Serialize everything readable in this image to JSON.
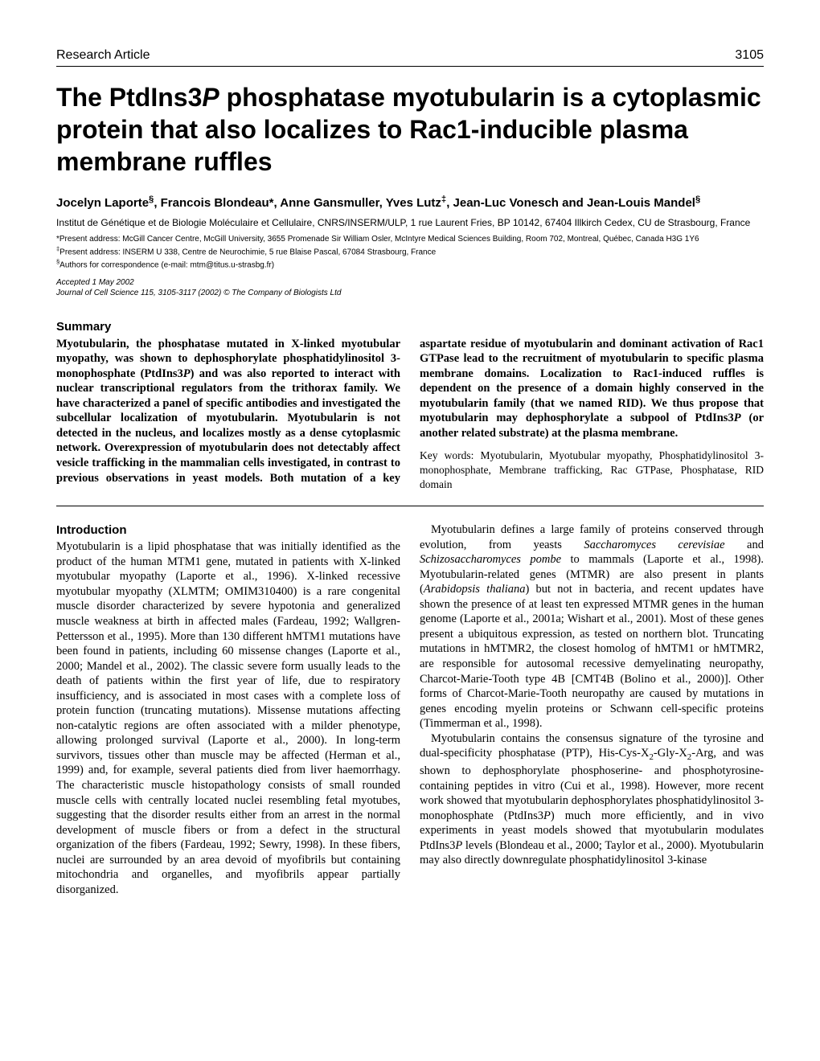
{
  "header": {
    "section": "Research Article",
    "page_number": "3105"
  },
  "title_html": "The PtdIns3<span class='ital'>P</span> phosphatase myotubularin is a cytoplasmic protein that also localizes to Rac1-inducible plasma membrane ruffles",
  "authors_html": "Jocelyn Laporte<sup>§</sup>, Francois Blondeau*, Anne Gansmuller, Yves Lutz<sup>‡</sup>, Jean-Luc Vonesch and Jean-Louis Mandel<sup>§</sup>",
  "affiliation": "Institut de Génétique et de Biologie Moléculaire et Cellulaire, CNRS/INSERM/ULP, 1 rue Laurent Fries, BP 10142, 67404 Illkirch Cedex, CU de Strasbourg, France",
  "addresses_html": "*Present address: McGill Cancer Centre, McGill University, 3655 Promenade Sir William Osler, McIntyre Medical Sciences Building, Room 702, Montreal, Québec, Canada H3G 1Y6<br><sup>‡</sup>Present address: INSERM U 338, Centre de Neurochimie, 5 rue Blaise Pascal, 67084 Strasbourg, France<br><sup>§</sup>Authors for correspondence (e-mail: mtm@titus.u-strasbg.fr)",
  "accepted": "Accepted 1 May 2002",
  "journal_ref": "Journal of Cell Science 115, 3105-3117 (2002) © The Company of Biologists Ltd",
  "summary": {
    "heading": "Summary",
    "body_html": "Myotubularin, the phosphatase mutated in X-linked myotubular myopathy, was shown to dephosphorylate phosphatidylinositol 3-monophosphate (PtdIns3<span class='ital'>P</span>) and was also reported to interact with nuclear transcriptional regulators from the trithorax family. We have characterized a panel of specific antibodies and investigated the subcellular localization of myotubularin. Myotubularin is not detected in the nucleus, and localizes mostly as a dense cytoplasmic network. Overexpression of myotubularin does not detectably affect vesicle trafficking in the mammalian cells investigated, in contrast to previous observations in yeast models. Both mutation of a key aspartate residue of myotubularin and dominant activation of Rac1 GTPase lead to the recruitment of myotubularin to specific plasma membrane domains. Localization to Rac1-induced ruffles is dependent on the presence of a domain highly conserved in the myotubularin family (that we named RID). We thus propose that myotubularin may dephosphorylate a subpool of PtdIns3<span class='ital'>P</span> (or another related substrate) at the plasma membrane.",
    "keywords_html": "Key words: Myotubularin, Myotubular myopathy, Phosphatidylinositol 3-monophosphate, Membrane trafficking, Rac GTPase, Phosphatase, RID domain"
  },
  "introduction": {
    "heading": "Introduction",
    "p1_html": "Myotubularin is a lipid phosphatase that was initially identified as the product of the human MTM1 gene, mutated in patients with X-linked myotubular myopathy (Laporte et al., 1996). X-linked recessive myotubular myopathy (XLMTM; OMIM310400) is a rare congenital muscle disorder characterized by severe hypotonia and generalized muscle weakness at birth in affected males (Fardeau, 1992; Wallgren-Pettersson et al., 1995). More than 130 different hMTM1 mutations have been found in patients, including 60 missense changes (Laporte et al., 2000; Mandel et al., 2002). The classic severe form usually leads to the death of patients within the first year of life, due to respiratory insufficiency, and is associated in most cases with a complete loss of protein function (truncating mutations). Missense mutations affecting non-catalytic regions are often associated with a milder phenotype, allowing prolonged survival (Laporte et al., 2000). In long-term survivors, tissues other than muscle may be affected (Herman et al., 1999) and, for example, several patients died from liver haemorrhagy. The characteristic muscle histopathology consists of small rounded muscle cells with centrally located nuclei resembling fetal myotubes, suggesting that the disorder results either from an arrest in the normal development of muscle fibers or from a defect in the structural organization of the fibers (Fardeau, 1992; Sewry, 1998). In these fibers, nuclei are surrounded by an area devoid of myofibrils but containing mitochondria and organelles, and myofibrils appear partially disorganized.",
    "p2_html": "Myotubularin defines a large family of proteins conserved through evolution, from yeasts <span class='ital'>Saccharomyces cerevisiae</span> and <span class='ital'>Schizosaccharomyces pombe</span> to mammals (Laporte et al., 1998). Myotubularin-related genes (MTMR) are also present in plants (<span class='ital'>Arabidopsis thaliana</span>) but not in bacteria, and recent updates have shown the presence of at least ten expressed MTMR genes in the human genome (Laporte et al., 2001a; Wishart et al., 2001). Most of these genes present a ubiquitous expression, as tested on northern blot. Truncating mutations in hMTMR2, the closest homolog of hMTM1 or hMTMR2, are responsible for autosomal recessive demyelinating neuropathy, Charcot-Marie-Tooth type 4B [CMT4B (Bolino et al., 2000)]. Other forms of Charcot-Marie-Tooth neuropathy are caused by mutations in genes encoding myelin proteins or Schwann cell-specific proteins (Timmerman et al., 1998).",
    "p3_html": "Myotubularin contains the consensus signature of the tyrosine and dual-specificity phosphatase (PTP), His-Cys-X<sub>2</sub>-Gly-X<sub>2</sub>-Arg, and was shown to dephosphorylate phosphoserine- and phosphotyrosine-containing peptides in vitro (Cui et al., 1998). However, more recent work showed that myotubularin dephosphorylates phosphatidylinositol 3-monophosphate (PtdIns3<span class='ital'>P</span>) much more efficiently, and in vivo experiments in yeast models showed that myotubularin modulates PtdIns3<span class='ital'>P</span> levels (Blondeau et al., 2000; Taylor et al., 2000). Myotubularin may also directly downregulate phosphatidylinositol 3-kinase"
  }
}
